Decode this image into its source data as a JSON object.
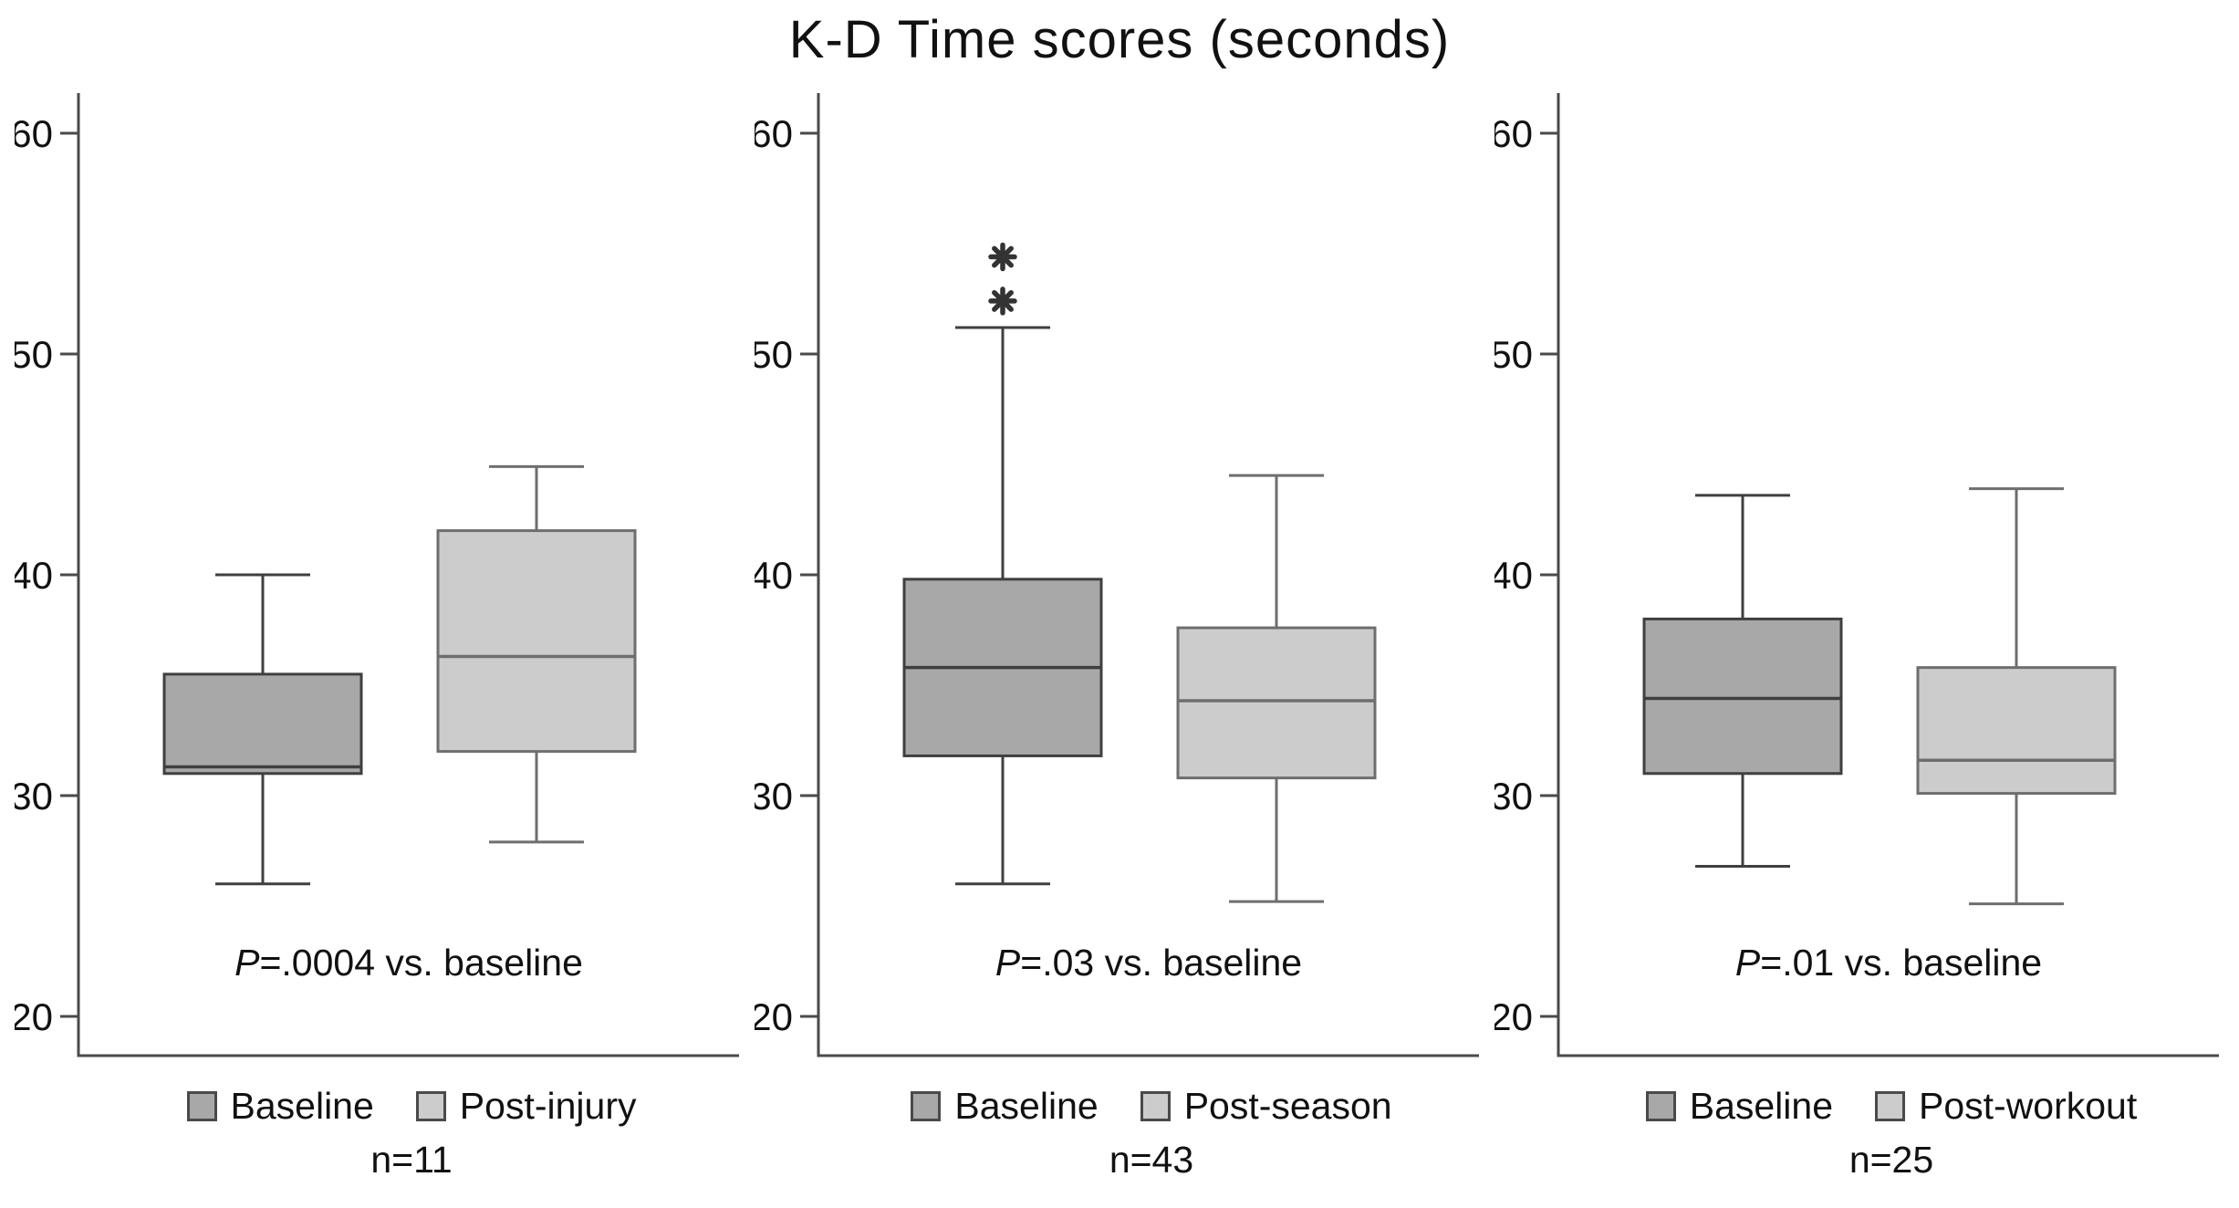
{
  "chart_data": {
    "type": "boxplot",
    "title": "K-D Time scores (seconds)",
    "ylabel": "",
    "xlabel": "",
    "y_ticks": [
      20,
      30,
      40,
      50,
      60
    ],
    "ylim": [
      18,
      62
    ],
    "grid": false,
    "legend_position": "bottom",
    "panels": [
      {
        "annotation": {
          "p_italic": "P",
          "text": "=.0004 vs. baseline",
          "full": "P=.0004 vs. baseline"
        },
        "n_label": "n=11",
        "boxes": [
          {
            "name": "Baseline",
            "whisker_low": 26.0,
            "q1": 31.0,
            "median": 31.3,
            "q3": 35.5,
            "whisker_high": 40.0,
            "outliers": [],
            "color": "#a8a8a8",
            "stroke": "#3f3f3f"
          },
          {
            "name": "Post-injury",
            "whisker_low": 27.9,
            "q1": 32.0,
            "median": 36.3,
            "q3": 42.0,
            "whisker_high": 44.9,
            "outliers": [],
            "color": "#cccccc",
            "stroke": "#6e6e6e"
          }
        ]
      },
      {
        "annotation": {
          "p_italic": "P",
          "text": "=.03 vs. baseline",
          "full": "P=.03 vs. baseline"
        },
        "n_label": "n=43",
        "boxes": [
          {
            "name": "Baseline",
            "whisker_low": 26.0,
            "q1": 31.8,
            "median": 35.8,
            "q3": 39.8,
            "whisker_high": 51.2,
            "outliers": [
              52.4,
              54.4
            ],
            "color": "#a8a8a8",
            "stroke": "#3f3f3f"
          },
          {
            "name": "Post-season",
            "whisker_low": 25.2,
            "q1": 30.8,
            "median": 34.3,
            "q3": 37.6,
            "whisker_high": 44.5,
            "outliers": [],
            "color": "#cccccc",
            "stroke": "#6e6e6e"
          }
        ]
      },
      {
        "annotation": {
          "p_italic": "P",
          "text": "=.01 vs. baseline",
          "full": "P=.01 vs. baseline"
        },
        "n_label": "n=25",
        "boxes": [
          {
            "name": "Baseline",
            "whisker_low": 26.8,
            "q1": 31.0,
            "median": 34.4,
            "q3": 38.0,
            "whisker_high": 43.6,
            "outliers": [],
            "color": "#a8a8a8",
            "stroke": "#3f3f3f"
          },
          {
            "name": "Post-workout",
            "whisker_low": 25.1,
            "q1": 30.1,
            "median": 31.6,
            "q3": 35.8,
            "whisker_high": 43.9,
            "outliers": [],
            "color": "#cccccc",
            "stroke": "#6e6e6e"
          }
        ]
      }
    ],
    "colors": {
      "baseline_fill": "#a8a8a8",
      "post_fill": "#cccccc",
      "axis": "#4a4a4a",
      "outlier": "#333333"
    }
  }
}
